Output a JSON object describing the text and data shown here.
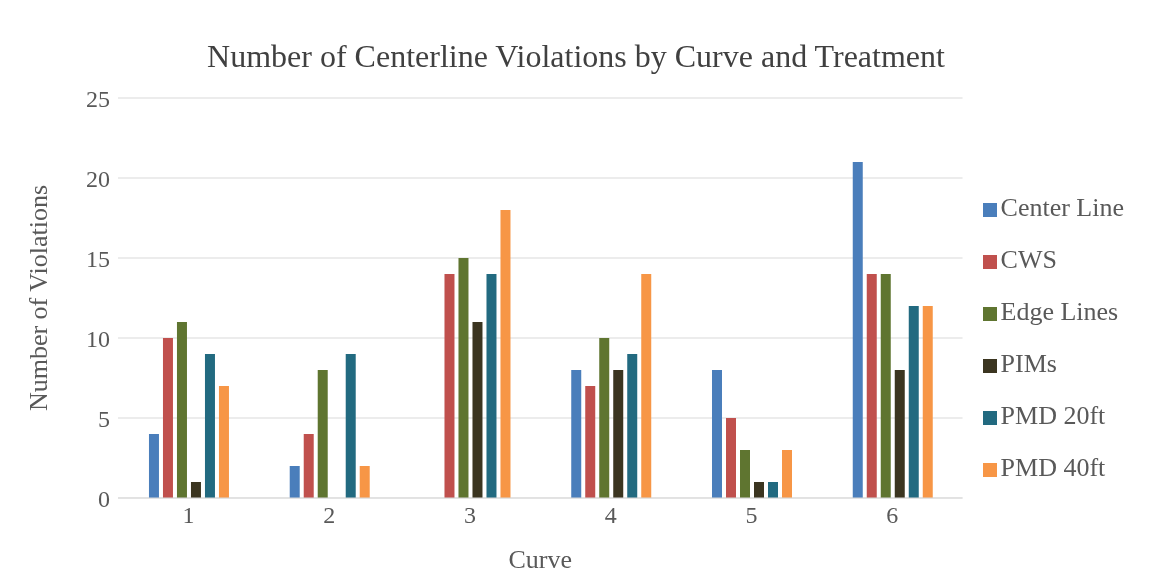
{
  "chart_data": {
    "type": "bar",
    "title": "Number of Centerline Violations by Curve and Treatment",
    "xlabel": "Curve",
    "ylabel": "Number of Violations",
    "categories": [
      "1",
      "2",
      "3",
      "4",
      "5",
      "6"
    ],
    "series": [
      {
        "name": "Center Line",
        "color": "#4a7ebb",
        "values": [
          4,
          2,
          0,
          8,
          8,
          21
        ]
      },
      {
        "name": "CWS",
        "color": "#c0504d",
        "values": [
          10,
          4,
          14,
          7,
          5,
          14
        ]
      },
      {
        "name": "Edge Lines",
        "color": "#5f7530",
        "values": [
          11,
          8,
          15,
          10,
          3,
          14
        ]
      },
      {
        "name": "PIMs",
        "color": "#3b3520",
        "values": [
          1,
          0,
          11,
          8,
          1,
          8
        ]
      },
      {
        "name": "PMD 20ft",
        "color": "#226a80",
        "values": [
          9,
          9,
          14,
          9,
          1,
          12
        ]
      },
      {
        "name": "PMD 40ft",
        "color": "#f79646",
        "values": [
          7,
          2,
          18,
          14,
          3,
          12
        ]
      }
    ],
    "ylim": [
      0,
      25
    ],
    "yticks": [
      0,
      5,
      10,
      15,
      20,
      25
    ],
    "grid": "y",
    "legend": "right"
  }
}
